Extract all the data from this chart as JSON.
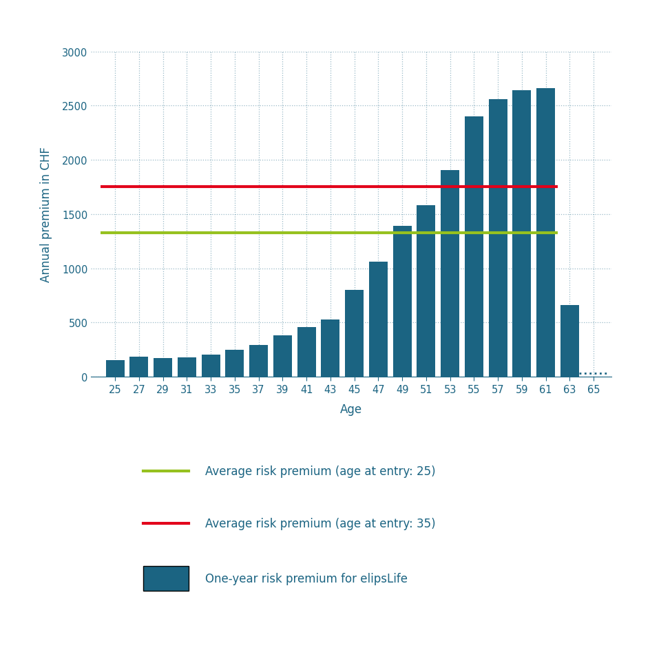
{
  "ages": [
    25,
    27,
    29,
    31,
    33,
    35,
    37,
    39,
    41,
    43,
    45,
    47,
    49,
    51,
    53,
    55,
    57,
    59,
    61,
    63,
    65
  ],
  "bar_heights": [
    155,
    185,
    175,
    180,
    205,
    250,
    295,
    380,
    455,
    530,
    800,
    1060,
    1390,
    1580,
    1905,
    2400,
    2560,
    2640,
    2660,
    660,
    0
  ],
  "bar_color": "#1b6482",
  "green_line_value": 1325,
  "red_line_value": 1750,
  "green_line_color": "#96c11f",
  "red_line_color": "#e2001a",
  "text_color": "#1b6482",
  "ylabel": "Annual premium in CHF",
  "xlabel": "Age",
  "ylim_max": 3000,
  "yticks": [
    0,
    500,
    1000,
    1500,
    2000,
    2500,
    3000
  ],
  "grid_color": "#1b6482",
  "legend_label_green": "Average risk premium (age at entry: 25)",
  "legend_label_red": "Average risk premium (age at entry: 35)",
  "legend_label_bar": "One-year risk premium for elipsLife",
  "background_color": "#ffffff"
}
